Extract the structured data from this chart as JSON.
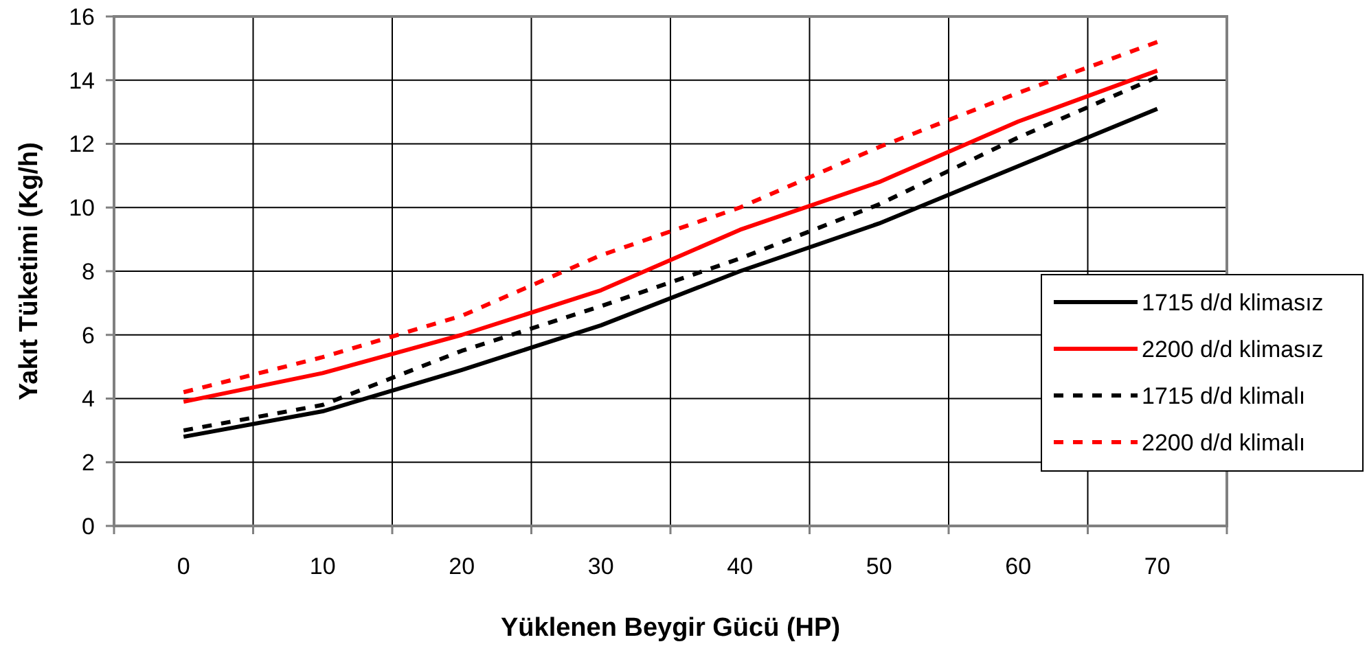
{
  "chart_data": {
    "type": "line",
    "xlabel": "Yüklenen Beygir Gücü (HP)",
    "ylabel": "Yakıt Tüketimi (Kg/h)",
    "categories": [
      "0",
      "10",
      "20",
      "30",
      "40",
      "50",
      "60",
      "70"
    ],
    "series": [
      {
        "name": "1715 d/d klimasız",
        "color": "#000000",
        "line_style": "solid",
        "values": [
          2.8,
          3.6,
          4.9,
          6.3,
          8.0,
          9.5,
          11.3,
          13.1
        ]
      },
      {
        "name": "2200 d/d klimasız",
        "color": "#ff0000",
        "line_style": "solid",
        "values": [
          3.9,
          4.8,
          6.0,
          7.4,
          9.3,
          10.8,
          12.7,
          14.3
        ]
      },
      {
        "name": "1715 d/d klimalı",
        "color": "#000000",
        "line_style": "dashed",
        "values": [
          3.0,
          3.8,
          5.5,
          6.9,
          8.4,
          10.1,
          12.2,
          14.1
        ]
      },
      {
        "name": "2200 d/d klimalı",
        "color": "#ff0000",
        "line_style": "dashed",
        "values": [
          4.2,
          5.3,
          6.6,
          8.5,
          10.0,
          11.9,
          13.6,
          15.2
        ]
      }
    ],
    "ylim": [
      0,
      16
    ],
    "yticks": [
      0,
      2,
      4,
      6,
      8,
      10,
      12,
      14,
      16
    ],
    "grid": true,
    "legend": "right",
    "marker": "none"
  }
}
